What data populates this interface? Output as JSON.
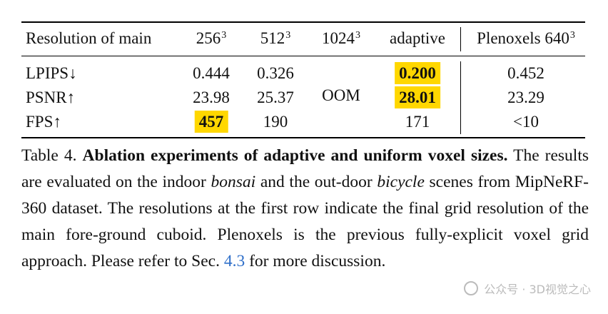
{
  "table": {
    "header": {
      "label": "Resolution of main",
      "col1": "256",
      "col1_sup": "3",
      "col2": "512",
      "col2_sup": "3",
      "col3": "1024",
      "col3_sup": "3",
      "col4": "adaptive",
      "col5": "Plenoxels 640",
      "col5_sup": "3"
    },
    "rows": [
      {
        "label": "LPIPS↓",
        "v1": "0.444",
        "v2": "0.326",
        "v4": "0.200",
        "v5": "0.452"
      },
      {
        "label": "PSNR↑",
        "v1": "23.98",
        "v2": "25.37",
        "v4": "28.01",
        "v5": "23.29"
      },
      {
        "label": "FPS↑",
        "v1": "457",
        "v2": "190",
        "v4": "171",
        "v5": "<10"
      }
    ],
    "oom": "OOM"
  },
  "caption": {
    "prefix": "Table 4. ",
    "bold": "Ablation experiments of adaptive and uniform voxel sizes.",
    "t1": " The results are evaluated on the indoor ",
    "i1": "bonsai",
    "t2": " and the out-door ",
    "i2": "bicycle",
    "t3": " scenes from MipNeRF-360 dataset. The resolutions at the first row indicate the final grid resolution of the main fore-ground cuboid. Plenoxels is the previous fully-explicit voxel grid approach. Please refer to Sec. ",
    "link": "4.3",
    "t4": " for more discussion."
  },
  "watermark": "公众号 · 3D视觉之心",
  "colors": {
    "highlight": "#ffd700",
    "link": "#2f6fc9"
  }
}
